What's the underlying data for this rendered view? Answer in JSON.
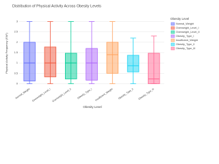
{
  "chart_data": {
    "type": "box",
    "title": "Distribution of Physical Activity Across Obesity Levels",
    "x_label": "Obesity Level",
    "y_label": "Physical Activity Frequency (FAF)",
    "legend_title": "Obesity Level",
    "categories": [
      "Normal_Weight",
      "Overweight_Level_I",
      "Overweight_Level_II",
      "Obesity_Type_I",
      "Insufficient_Weight",
      "Obesity_Type_II",
      "Obesity_Type_III"
    ],
    "ylim": [
      -0.15,
      3.15
    ],
    "yticks": [
      0,
      0.5,
      1,
      1.5,
      2,
      2.5,
      3
    ],
    "grid": true,
    "series": [
      {
        "name": "Normal_Weight",
        "color": "#636efa",
        "min": 0,
        "q1": 0.13,
        "median": 1,
        "q3": 2,
        "max": 3
      },
      {
        "name": "Overweight_Level_I",
        "color": "#ef553b",
        "min": 0,
        "q1": 0.33,
        "median": 1,
        "q3": 1.77,
        "max": 3
      },
      {
        "name": "Overweight_Level_II",
        "color": "#00cc96",
        "min": 0,
        "q1": 0.23,
        "median": 1,
        "q3": 1.47,
        "max": 3
      },
      {
        "name": "Obesity_Type_I",
        "color": "#ab63fa",
        "min": 0,
        "q1": 0.17,
        "median": 1,
        "q3": 1.7,
        "max": 3
      },
      {
        "name": "Insufficient_Weight",
        "color": "#ffa15a",
        "min": 0,
        "q1": 0.5,
        "median": 1.4,
        "q3": 2,
        "max": 3
      },
      {
        "name": "Obesity_Type_II",
        "color": "#19d3f3",
        "min": 0,
        "q1": 0.57,
        "median": 0.87,
        "q3": 1.37,
        "max": 2.2
      },
      {
        "name": "Obesity_Type_III",
        "color": "#ff6692",
        "min": 0,
        "q1": 0,
        "median": 0.23,
        "q3": 1.47,
        "max": 2.3
      }
    ]
  }
}
